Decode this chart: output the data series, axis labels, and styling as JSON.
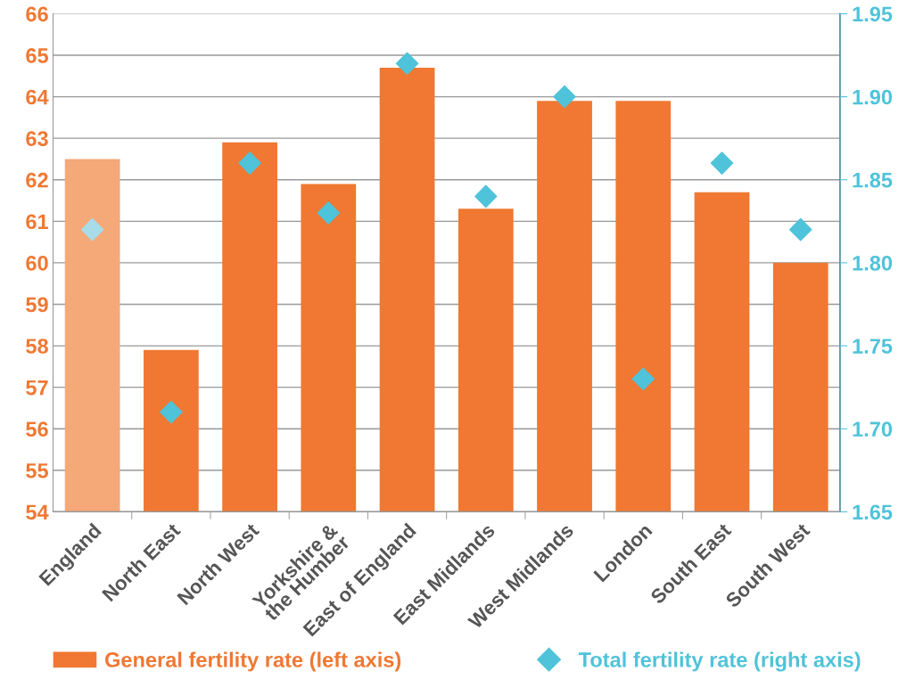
{
  "chart_data": {
    "type": "bar",
    "categories": [
      "England",
      "North East",
      "North West",
      "Yorkshire &\nthe Humber",
      "East of England",
      "East Midlands",
      "West Midlands",
      "London",
      "South East",
      "South West"
    ],
    "series": [
      {
        "name": "General fertility rate (left axis)",
        "color": "#f07832",
        "colors": [
          "#f5a878",
          "#f07832",
          "#f07832",
          "#f07832",
          "#f07832",
          "#f07832",
          "#f07832",
          "#f07832",
          "#f07832",
          "#f07832"
        ],
        "values": [
          62.5,
          57.9,
          62.9,
          61.9,
          64.7,
          61.3,
          63.9,
          63.9,
          61.7,
          60.0
        ]
      },
      {
        "name": "Total fertility rate (right axis)",
        "type": "scatter",
        "axis": "y2",
        "color": "#4fc3d9",
        "colors": [
          "#a8dce8",
          "#4fc3d9",
          "#4fc3d9",
          "#4fc3d9",
          "#4fc3d9",
          "#4fc3d9",
          "#4fc3d9",
          "#4fc3d9",
          "#4fc3d9",
          "#4fc3d9"
        ],
        "values": [
          1.82,
          1.71,
          1.86,
          1.83,
          1.92,
          1.84,
          1.9,
          1.73,
          1.86,
          1.82
        ]
      }
    ],
    "ylim": [
      54,
      66
    ],
    "yticks": [
      54,
      55,
      56,
      57,
      58,
      59,
      60,
      61,
      62,
      63,
      64,
      65,
      66
    ],
    "y2lim": [
      1.65,
      1.95
    ],
    "y2ticks": [
      {
        "value": 1.65,
        "label": "1.65"
      },
      {
        "value": 1.7,
        "label": "1.70"
      },
      {
        "value": 1.75,
        "label": "1.75"
      },
      {
        "value": 1.8,
        "label": "1.80"
      },
      {
        "value": 1.85,
        "label": "1.85"
      },
      {
        "value": 1.9,
        "label": "1.90"
      },
      {
        "value": 1.95,
        "label": "1.95"
      }
    ],
    "grid": "y",
    "legend": "bottom",
    "marker": "diamond"
  }
}
